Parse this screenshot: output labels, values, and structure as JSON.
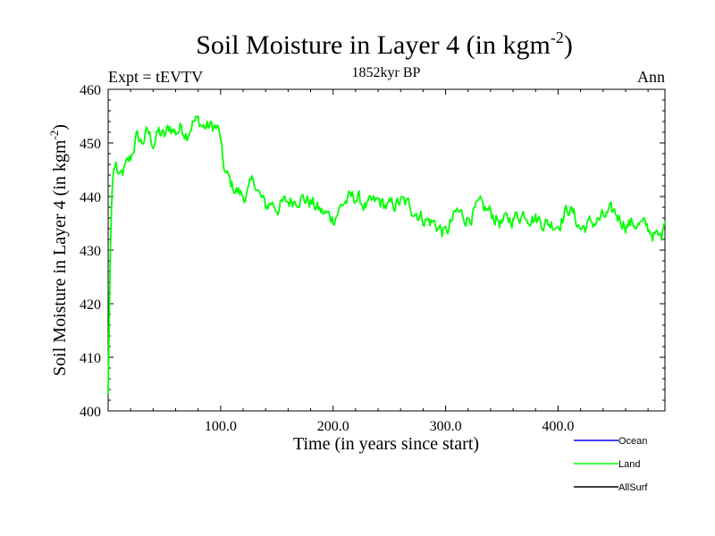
{
  "chart_data": {
    "type": "line",
    "title_main": "Soil Moisture in Layer 4 (in kgm",
    "title_sup": "-2",
    "title_close": ")",
    "subtitle_left": "Expt = tEVTV",
    "subtitle_center": "1852kyr BP",
    "subtitle_right": "Ann",
    "xlabel": "Time (in years since start)",
    "ylabel_main": "Soil Moisture in Layer 4 (in kgm",
    "ylabel_sup": "-2",
    "ylabel_close": ")",
    "xlim": [
      0,
      495
    ],
    "ylim": [
      400,
      460
    ],
    "x_ticks": [
      100,
      200,
      300,
      400
    ],
    "x_tick_labels": [
      "100.0",
      "200.0",
      "300.0",
      "400.0"
    ],
    "y_ticks": [
      400,
      410,
      420,
      430,
      440,
      450,
      460
    ],
    "y_tick_labels": [
      "400",
      "410",
      "420",
      "430",
      "440",
      "450",
      "460"
    ],
    "grid": false,
    "legend_position": "bottom-right",
    "series": [
      {
        "name": "Ocean",
        "color": "#0000ff",
        "x": [],
        "values": []
      },
      {
        "name": "Land",
        "color": "#00ff00",
        "x": [
          0,
          1,
          2,
          3,
          4,
          5,
          7,
          10,
          15,
          20,
          25,
          30,
          35,
          40,
          45,
          50,
          55,
          60,
          65,
          70,
          75,
          80,
          85,
          90,
          95,
          99,
          100,
          102,
          105,
          110,
          115,
          120,
          125,
          130,
          135,
          140,
          145,
          150,
          160,
          170,
          180,
          190,
          200,
          210,
          220,
          230,
          240,
          250,
          260,
          270,
          280,
          290,
          300,
          310,
          320,
          330,
          340,
          350,
          360,
          370,
          380,
          390,
          400,
          410,
          420,
          430,
          440,
          450,
          460,
          470,
          480,
          485,
          490,
          493,
          495
        ],
        "values": [
          403,
          418,
          430,
          438,
          443,
          445,
          446,
          443,
          445,
          447,
          451,
          450,
          452,
          450,
          452,
          451,
          453,
          452,
          453,
          452,
          454,
          454,
          453,
          453,
          453,
          452,
          450,
          446,
          444,
          442,
          441,
          440,
          441,
          443,
          440,
          438,
          439,
          438,
          439,
          440,
          439,
          437,
          436,
          439,
          440,
          438,
          439,
          438,
          439,
          438,
          436,
          435,
          433,
          437,
          436,
          438,
          437,
          435,
          436,
          437,
          436,
          435,
          435,
          438,
          434,
          435,
          436,
          437,
          435,
          435,
          434,
          433,
          432,
          433,
          437
        ]
      },
      {
        "name": "AllSurf",
        "color": "#000000",
        "x": [],
        "values": []
      }
    ]
  }
}
